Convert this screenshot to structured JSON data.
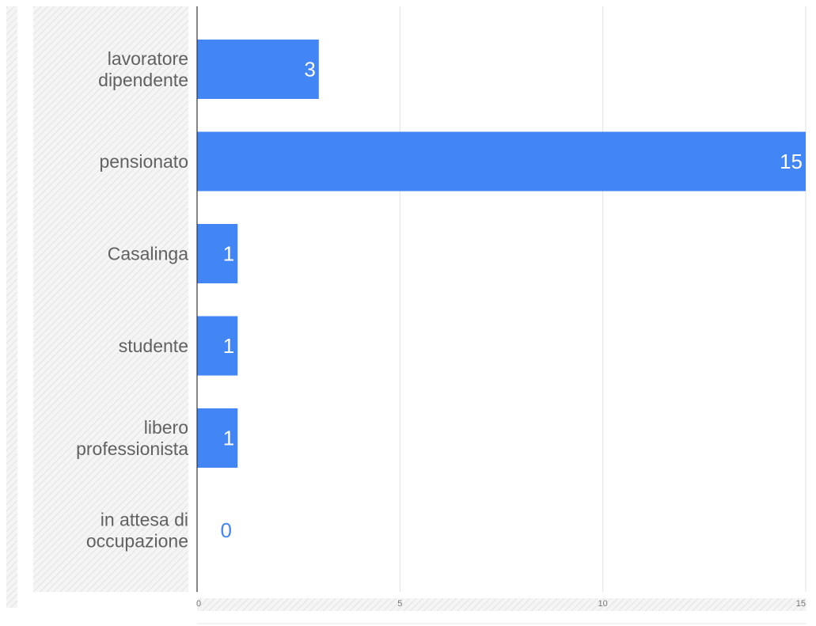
{
  "chart_data": {
    "type": "bar",
    "orientation": "horizontal",
    "categories": [
      [
        "lavoratore",
        "dipendente"
      ],
      [
        "pensionato"
      ],
      [
        "Casalinga"
      ],
      [
        "studente"
      ],
      [
        "libero",
        "professionista"
      ],
      [
        "in attesa di",
        "occupazione"
      ]
    ],
    "values": [
      3,
      15,
      1,
      1,
      1,
      0
    ],
    "xlim": [
      0,
      15
    ],
    "xticks": [
      0,
      5,
      10,
      15
    ],
    "grid": true,
    "data_labels": true,
    "title": "",
    "xlabel": "",
    "ylabel": "",
    "colors": {
      "bar": "#4285f4",
      "grid": "#e0e0e0",
      "axis": "#333333",
      "hatch_light": "#f2f2f2",
      "hatch_dark": "#dcdcdc"
    }
  }
}
